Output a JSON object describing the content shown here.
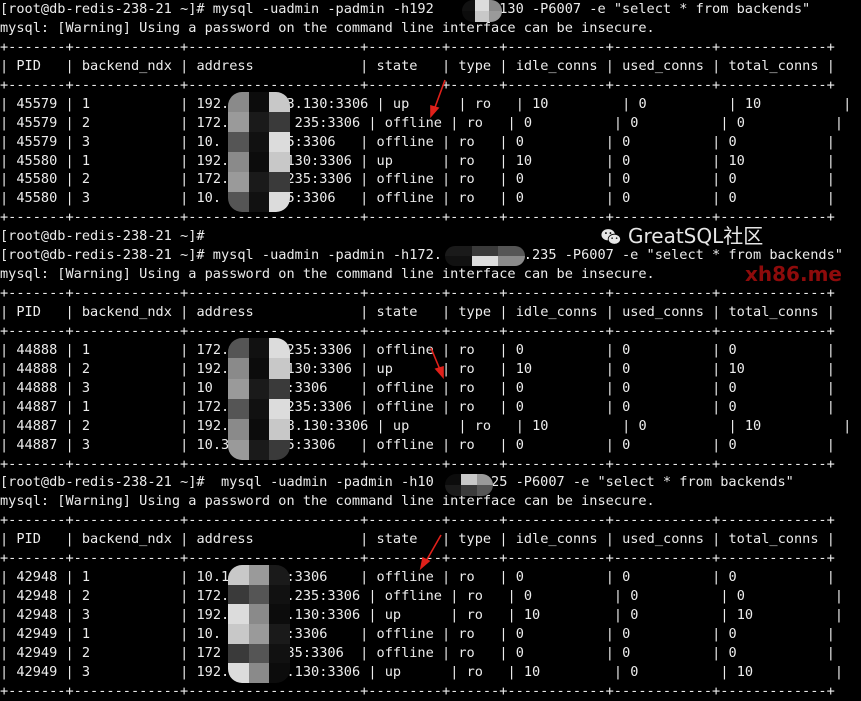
{
  "prompt": "[root@db-redis-238-21 ~]#",
  "warning": "mysql: [Warning] Using a password on the command line interface can be insecure.",
  "columns": [
    "PID",
    "backend_ndx",
    "address",
    "state",
    "type",
    "idle_conns",
    "used_conns",
    "total_conns"
  ],
  "sessions": [
    {
      "command": " mysql -uadmin -padmin -h192       .130 -P6007 -e \"select * from backends\"",
      "rows": [
        [
          "45579",
          "1",
          "192.       3.130:3306",
          "up",
          "ro",
          "10",
          "0",
          "10"
        ],
        [
          "45579",
          "2",
          "172.2       235:3306",
          "offline",
          "ro",
          "0",
          "0",
          "0"
        ],
        [
          "45579",
          "3",
          "10.      .25:3306",
          "offline",
          "ro",
          "0",
          "0",
          "0"
        ],
        [
          "45580",
          "1",
          "192.       130:3306",
          "up",
          "ro",
          "10",
          "0",
          "10"
        ],
        [
          "45580",
          "2",
          "172.       235:3306",
          "offline",
          "ro",
          "0",
          "0",
          "0"
        ],
        [
          "45580",
          "3",
          "10.      .25:3306",
          "offline",
          "ro",
          "0",
          "0",
          "0"
        ]
      ]
    },
    {
      "pre_prompt": "[root@db-redis-238-21 ~]#",
      "command": " mysql -uadmin -padmin -h172.          .235 -P6007 -e \"select * from backends\"",
      "rows": [
        [
          "44888",
          "1",
          "172.       235:3306",
          "offline",
          "ro",
          "0",
          "0",
          "0"
        ],
        [
          "44888",
          "2",
          "192.       130:3306",
          "up",
          "ro",
          "10",
          "0",
          "10"
        ],
        [
          "44888",
          "3",
          "10       25:3306",
          "offline",
          "ro",
          "0",
          "0",
          "0"
        ],
        [
          "44887",
          "1",
          "172.       235:3306",
          "offline",
          "ro",
          "0",
          "0",
          "0"
        ],
        [
          "44887",
          "2",
          "192.     .88.130:3306",
          "up",
          "ro",
          "10",
          "0",
          "10"
        ],
        [
          "44887",
          "3",
          "10.3     .25:3306",
          "offline",
          "ro",
          "0",
          "0",
          "0"
        ]
      ]
    },
    {
      "command": "  mysql -uadmin -padmin -h10      .25 -P6007 -e \"select * from backends\"",
      "rows": [
        [
          "42948",
          "1",
          "10.1     25:3306",
          "offline",
          "ro",
          "0",
          "0",
          "0"
        ],
        [
          "42948",
          "2",
          "172.2      .235:3306",
          "offline",
          "ro",
          "0",
          "0",
          "0"
        ],
        [
          "42948",
          "3",
          "192.1      .130:3306",
          "up",
          "ro",
          "10",
          "0",
          "10"
        ],
        [
          "42949",
          "1",
          "10.      25:3306",
          "offline",
          "ro",
          "0",
          "0",
          "0"
        ],
        [
          "42949",
          "2",
          "172      .235:3306",
          "offline",
          "ro",
          "0",
          "0",
          "0"
        ],
        [
          "42949",
          "3",
          "192.1      .130:3306",
          "up",
          "ro",
          "10",
          "0",
          "10"
        ]
      ]
    }
  ],
  "watermarks": {
    "site": "xh86.me",
    "community": "GreatSQL社区"
  },
  "colors": {
    "background": "#000000",
    "text": "#ececec",
    "arrow": "#e0201a",
    "site_watermark": "#8e0b0b"
  }
}
